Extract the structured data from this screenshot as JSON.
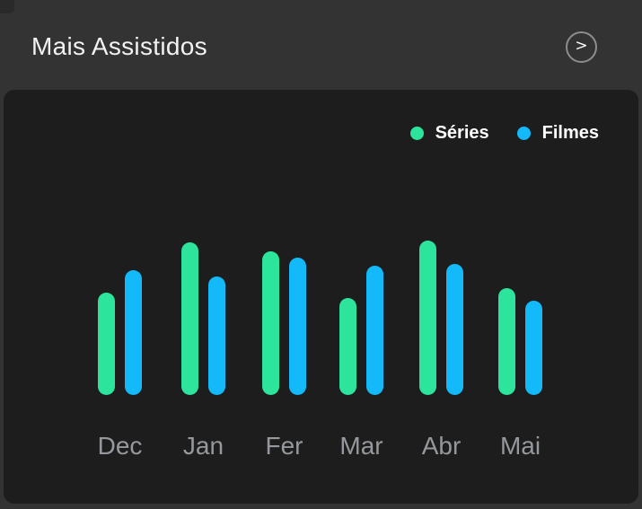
{
  "header": {
    "title": "Mais Assistidos",
    "more_button_glyph": ">"
  },
  "chart_data": {
    "type": "bar",
    "title": "Mais Assistidos",
    "categories": [
      "Dec",
      "Jan",
      "Fer",
      "Mar",
      "Abr",
      "Mai"
    ],
    "series": [
      {
        "name": "Séries",
        "color": "#2ce49b",
        "values": [
          66,
          99,
          93,
          63,
          100,
          69
        ]
      },
      {
        "name": "Filmes",
        "color": "#13b9f8",
        "values": [
          81,
          77,
          89,
          84,
          85,
          61
        ]
      }
    ],
    "ylim": [
      0,
      100
    ],
    "grid": false,
    "legend_position": "top-right",
    "xlabel": "",
    "ylabel": ""
  },
  "theme": {
    "page_bg": "#333333",
    "card_bg": "#1d1d1d",
    "title_color": "#f2f2f2",
    "legend_text_color": "#ffffff",
    "axis_label_color": "#95989c",
    "button_border_color": "#8d8d8d"
  }
}
